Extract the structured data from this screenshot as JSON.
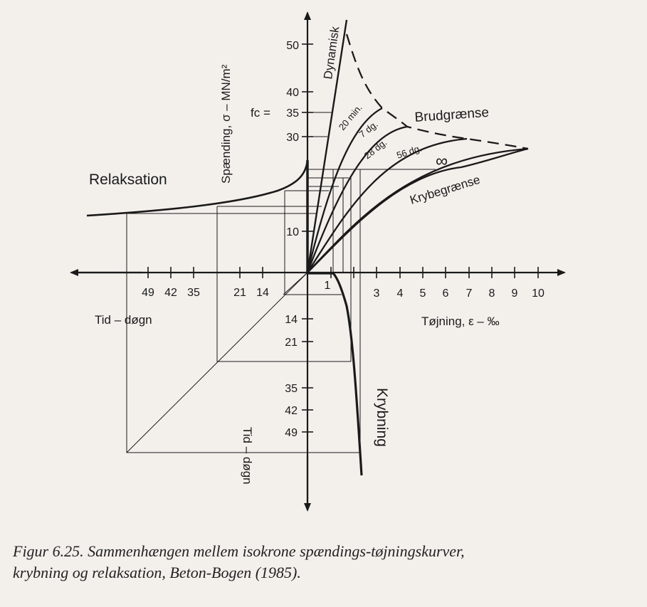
{
  "labels": {
    "relaksation": "Relaksation",
    "spaending_axis": "Spænding, σ – MN/m²",
    "fc": "fc =",
    "dynamisk": "Dynamisk",
    "brudgraense": "Brudgrænse",
    "krybegraense": "Krybegrænse",
    "infinity": "∞",
    "tojning_axis": "Tøjning, ε – ‰",
    "tid_dogn_left": "Tid – døgn",
    "tid_dogn_bottom": "Tid – døgn",
    "krybning": "Krybning"
  },
  "curve_labels": [
    "20 min.",
    "7 dg.",
    "28 dg.",
    "56 dg."
  ],
  "stress_ticks": [
    "50",
    "40",
    "35",
    "30",
    "10"
  ],
  "strain_ticks": [
    "1",
    "3",
    "4",
    "5",
    "6",
    "7",
    "8",
    "9",
    "10"
  ],
  "time_ticks_left": [
    "49",
    "42",
    "35",
    "21",
    "14"
  ],
  "time_ticks_down": [
    "14",
    "21",
    "35",
    "42",
    "49"
  ],
  "caption": {
    "line1": "Figur 6.25. Sammenhængen mellem isokrone spændings-tøjningskurver,",
    "line2": "krybning og relaksation, Beton-Bogen (1985)."
  }
}
